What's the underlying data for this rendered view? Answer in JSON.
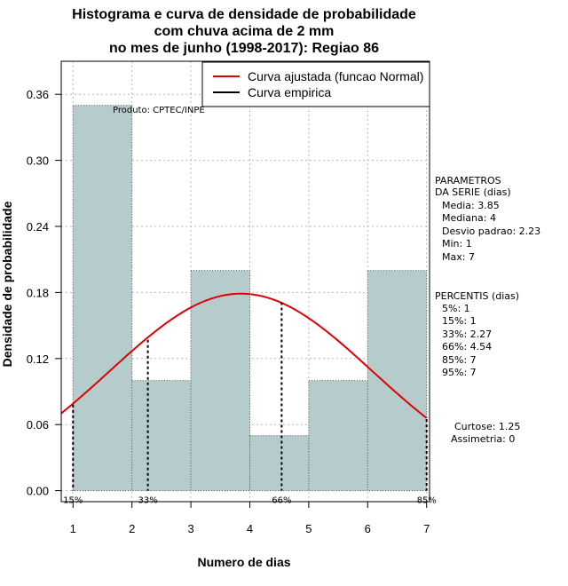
{
  "chart_data": {
    "type": "bar",
    "title_lines": [
      "Histograma e curva de densidade de probabilidade",
      "com chuva acima de 2 mm",
      "no mes de junho (1998-2017): Regiao 86"
    ],
    "xlabel": "Numero de dias",
    "ylabel": "Densidade de probabilidade",
    "xlim": [
      0.8,
      7.05
    ],
    "ylim": [
      -0.01,
      0.39
    ],
    "x_ticks": [
      1,
      2,
      3,
      4,
      5,
      6,
      7
    ],
    "y_ticks": [
      0.0,
      0.06,
      0.12,
      0.18,
      0.24,
      0.3,
      0.36
    ],
    "y_tick_labels": [
      "0.00",
      "0.06",
      "0.12",
      "0.18",
      "0.24",
      "0.30",
      "0.36"
    ],
    "grid": true,
    "bars": [
      {
        "x0": 1,
        "x1": 2,
        "value": 0.35
      },
      {
        "x0": 2,
        "x1": 3,
        "value": 0.1
      },
      {
        "x0": 3,
        "x1": 4,
        "value": 0.2
      },
      {
        "x0": 4,
        "x1": 5,
        "value": 0.05
      },
      {
        "x0": 5,
        "x1": 6,
        "value": 0.1
      },
      {
        "x0": 6,
        "x1": 7,
        "value": 0.2
      }
    ],
    "normal_curve": {
      "name": "Curva ajustada (funcao Normal)",
      "mean": 3.85,
      "sd": 2.23,
      "color": "#e00000"
    },
    "empirical_curve_name": "Curva empirica",
    "percentile_lines": [
      {
        "label": "15%",
        "x": 1,
        "y": 0.078
      },
      {
        "label": "33%",
        "x": 2.27,
        "y": 0.137
      },
      {
        "label": "66%",
        "x": 4.54,
        "y": 0.171
      },
      {
        "label": "85%",
        "x": 7,
        "y": 0.065
      }
    ],
    "legend_position": "top-right",
    "bar_color": "#b6cccc",
    "watermark": "Produto: CPTEC/INPE"
  },
  "side_panel": {
    "params_title_1": "PARAMETROS",
    "params_title_2": "DA SERIE (dias)",
    "params": [
      "Media: 3.85",
      "Mediana: 4",
      "Desvio padrao: 2.23",
      "Min: 1",
      "Max: 7"
    ],
    "percentis_title": "PERCENTIS (dias)",
    "percentis": [
      "5%: 1",
      "15%: 1",
      "33%: 2.27",
      "66%: 4.54",
      "85%: 7",
      "95%: 7"
    ],
    "curtose": "Curtose: 1.25",
    "assimetria": "Assimetria: 0"
  }
}
